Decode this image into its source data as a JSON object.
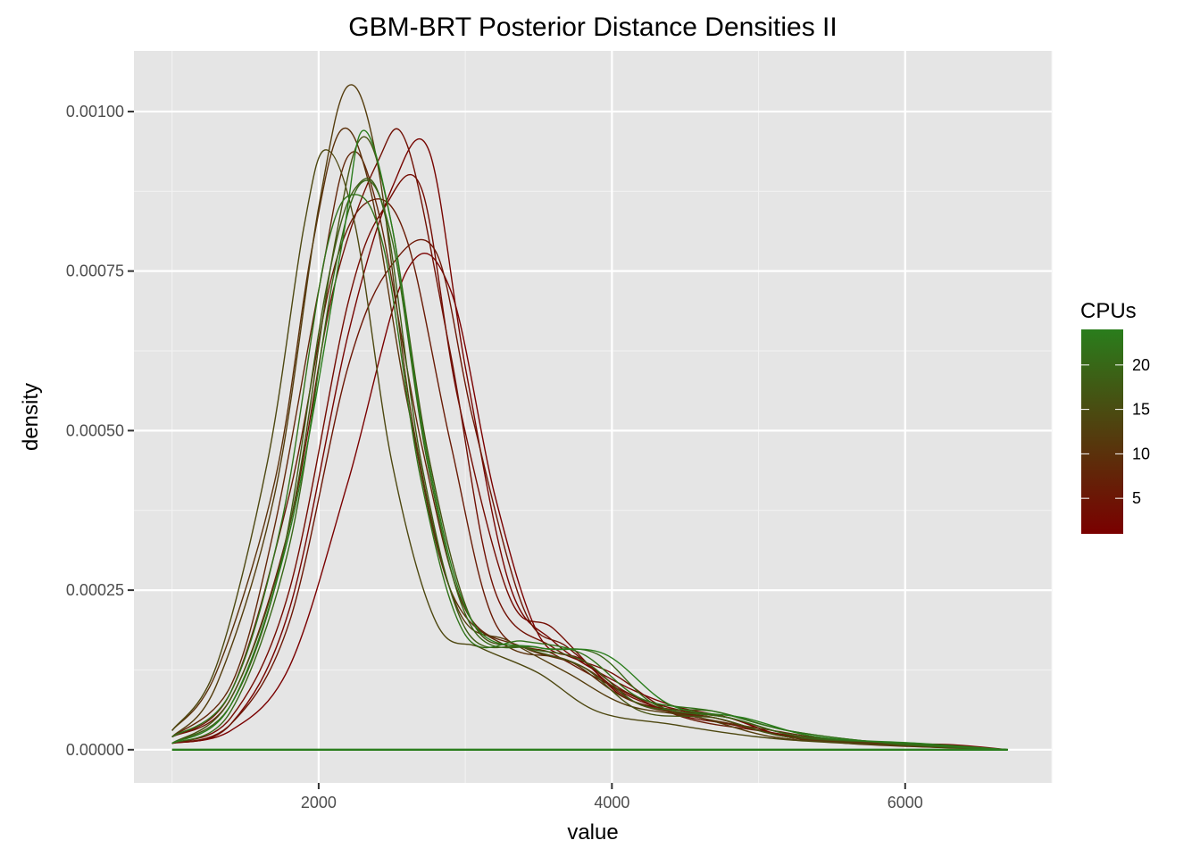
{
  "chart_data": {
    "type": "line",
    "title": "GBM-BRT Posterior Distance Densities II",
    "xlabel": "value",
    "ylabel": "density",
    "xlim": [
      740,
      7000
    ],
    "ylim": [
      -5.2e-05,
      0.001095
    ],
    "x_ticks": [
      2000,
      4000,
      6000
    ],
    "x_tick_labels": [
      "2000",
      "4000",
      "6000"
    ],
    "y_ticks": [
      0,
      0.00025,
      0.0005,
      0.00075,
      0.001
    ],
    "y_tick_labels": [
      "0.00000",
      "0.00025",
      "0.00050",
      "0.00075",
      "0.00100"
    ],
    "grid": true,
    "panel_background": "#e5e5e5",
    "grid_color": "#ffffff",
    "legend": {
      "title": "CPUs",
      "position": "right",
      "type": "colorbar",
      "range": [
        1,
        24
      ],
      "ticks": [
        5,
        10,
        15,
        20
      ],
      "tick_labels": [
        "5",
        "10",
        "15",
        "20"
      ],
      "low_color": "#7a0000",
      "high_color": "#2a7d1c"
    },
    "series": [
      {
        "cpus": 1,
        "values": [
          [
            1000,
            1e-05
          ],
          [
            1400,
            3e-05
          ],
          [
            1800,
            0.00013
          ],
          [
            2200,
            0.00042
          ],
          [
            2600,
            0.00075
          ],
          [
            2900,
            0.00072
          ],
          [
            3200,
            0.0004
          ],
          [
            3500,
            0.00018
          ],
          [
            3800,
            0.00014
          ],
          [
            4100,
            8e-05
          ],
          [
            4500,
            6e-05
          ],
          [
            4800,
            5e-05
          ],
          [
            5200,
            2e-05
          ],
          [
            5700,
            1e-05
          ],
          [
            6300,
            5e-06
          ],
          [
            6700,
            0
          ]
        ]
      },
      {
        "cpus": 2,
        "values": [
          [
            1000,
            1e-05
          ],
          [
            1400,
            4e-05
          ],
          [
            1800,
            0.00022
          ],
          [
            2200,
            0.00065
          ],
          [
            2500,
            0.00088
          ],
          [
            2750,
            0.00094
          ],
          [
            3000,
            0.0006
          ],
          [
            3300,
            0.00026
          ],
          [
            3600,
            0.00017
          ],
          [
            4000,
            0.00011
          ],
          [
            4400,
            7e-05
          ],
          [
            4800,
            5e-05
          ],
          [
            5200,
            2e-05
          ],
          [
            5800,
            1e-05
          ],
          [
            6300,
            8e-06
          ],
          [
            6700,
            0
          ]
        ]
      },
      {
        "cpus": 3,
        "values": [
          [
            1000,
            1e-05
          ],
          [
            1400,
            5e-05
          ],
          [
            1800,
            0.00025
          ],
          [
            2200,
            0.0007
          ],
          [
            2450,
            0.00085
          ],
          [
            2700,
            0.00088
          ],
          [
            2950,
            0.00055
          ],
          [
            3300,
            0.00024
          ],
          [
            3600,
            0.00019
          ],
          [
            4000,
            0.0001
          ],
          [
            4400,
            6e-05
          ],
          [
            4700,
            5e-05
          ],
          [
            5200,
            2e-05
          ],
          [
            5800,
            1e-05
          ],
          [
            6700,
            0
          ]
        ]
      },
      {
        "cpus": 4,
        "values": [
          [
            1000,
            2e-05
          ],
          [
            1400,
            8e-05
          ],
          [
            1800,
            0.00035
          ],
          [
            2100,
            0.00072
          ],
          [
            2400,
            0.00092
          ],
          [
            2600,
            0.00095
          ],
          [
            2900,
            0.00062
          ],
          [
            3200,
            0.00025
          ],
          [
            3600,
            0.00016
          ],
          [
            4000,
            0.00012
          ],
          [
            4400,
            6e-05
          ],
          [
            4800,
            4e-05
          ],
          [
            5300,
            2e-05
          ],
          [
            6000,
            1e-05
          ],
          [
            6700,
            0
          ]
        ]
      },
      {
        "cpus": 5,
        "values": [
          [
            1000,
            1e-05
          ],
          [
            1400,
            4e-05
          ],
          [
            1800,
            0.0002
          ],
          [
            2200,
            0.0006
          ],
          [
            2500,
            0.00076
          ],
          [
            2800,
            0.00078
          ],
          [
            3050,
            0.00052
          ],
          [
            3400,
            0.00022
          ],
          [
            3700,
            0.00016
          ],
          [
            4100,
            9e-05
          ],
          [
            4500,
            6e-05
          ],
          [
            4800,
            5e-05
          ],
          [
            5300,
            2e-05
          ],
          [
            6000,
            1e-05
          ],
          [
            6700,
            0
          ]
        ]
      },
      {
        "cpus": 6,
        "values": [
          [
            1000,
            2e-05
          ],
          [
            1400,
            9e-05
          ],
          [
            1800,
            0.0004
          ],
          [
            2100,
            0.00075
          ],
          [
            2350,
            0.00086
          ],
          [
            2600,
            0.0008
          ],
          [
            2900,
            0.00048
          ],
          [
            3200,
            0.0002
          ],
          [
            3600,
            0.00015
          ],
          [
            4000,
            0.0001
          ],
          [
            4500,
            5e-05
          ],
          [
            5000,
            3e-05
          ],
          [
            5600,
            1e-05
          ],
          [
            6700,
            0
          ]
        ]
      },
      {
        "cpus": 8,
        "values": [
          [
            1000,
            2e-05
          ],
          [
            1400,
            0.0001
          ],
          [
            1700,
            0.00035
          ],
          [
            2000,
            0.00072
          ],
          [
            2200,
            0.00093
          ],
          [
            2400,
            0.00085
          ],
          [
            2700,
            0.00048
          ],
          [
            3000,
            0.00022
          ],
          [
            3400,
            0.00016
          ],
          [
            3800,
            0.00013
          ],
          [
            4200,
            7e-05
          ],
          [
            4700,
            5e-05
          ],
          [
            5200,
            2e-05
          ],
          [
            5800,
            1e-05
          ],
          [
            6700,
            0
          ]
        ]
      },
      {
        "cpus": 10,
        "values": [
          [
            1000,
            3e-05
          ],
          [
            1300,
            0.00012
          ],
          [
            1700,
            0.00042
          ],
          [
            1950,
            0.00078
          ],
          [
            2150,
            0.00097
          ],
          [
            2350,
            0.00088
          ],
          [
            2600,
            0.00055
          ],
          [
            2900,
            0.00025
          ],
          [
            3300,
            0.00016
          ],
          [
            3700,
            0.00014
          ],
          [
            4100,
            8e-05
          ],
          [
            4600,
            5e-05
          ],
          [
            5100,
            3e-05
          ],
          [
            5700,
            1e-05
          ],
          [
            6700,
            0
          ]
        ]
      },
      {
        "cpus": 12,
        "values": [
          [
            1000,
            2e-05
          ],
          [
            1300,
            0.0001
          ],
          [
            1700,
            0.0004
          ],
          [
            2000,
            0.00085
          ],
          [
            2200,
            0.00104
          ],
          [
            2400,
            0.00092
          ],
          [
            2650,
            0.0005
          ],
          [
            2950,
            0.00022
          ],
          [
            3300,
            0.00017
          ],
          [
            3700,
            0.00012
          ],
          [
            4100,
            7e-05
          ],
          [
            4600,
            5e-05
          ],
          [
            5100,
            2e-05
          ],
          [
            5700,
            1e-05
          ],
          [
            6700,
            0
          ]
        ]
      },
      {
        "cpus": 14,
        "values": [
          [
            1000,
            3e-05
          ],
          [
            1300,
            0.00013
          ],
          [
            1650,
            0.00045
          ],
          [
            1900,
            0.00082
          ],
          [
            2050,
            0.00094
          ],
          [
            2250,
            0.00082
          ],
          [
            2500,
            0.00045
          ],
          [
            2800,
            0.0002
          ],
          [
            3100,
            0.00016
          ],
          [
            3500,
            0.00012
          ],
          [
            3900,
            6e-05
          ],
          [
            4400,
            4e-05
          ],
          [
            5000,
            2e-05
          ],
          [
            5600,
            1e-05
          ],
          [
            6700,
            0
          ]
        ]
      },
      {
        "cpus": 16,
        "values": [
          [
            1000,
            1e-05
          ],
          [
            1400,
            8e-05
          ],
          [
            1800,
            0.00035
          ],
          [
            2100,
            0.00078
          ],
          [
            2300,
            0.00096
          ],
          [
            2500,
            0.00082
          ],
          [
            2750,
            0.00046
          ],
          [
            3050,
            0.0002
          ],
          [
            3400,
            0.00016
          ],
          [
            3800,
            0.00013
          ],
          [
            4200,
            6e-05
          ],
          [
            4700,
            5e-05
          ],
          [
            5200,
            2e-05
          ],
          [
            6000,
            1e-05
          ],
          [
            6700,
            0
          ]
        ]
      },
      {
        "cpus": 18,
        "values": [
          [
            1000,
            1e-05
          ],
          [
            1400,
            7e-05
          ],
          [
            1750,
            0.0003
          ],
          [
            2050,
            0.00072
          ],
          [
            2250,
            0.00088
          ],
          [
            2450,
            0.00084
          ],
          [
            2700,
            0.00045
          ],
          [
            3000,
            0.00019
          ],
          [
            3400,
            0.00016
          ],
          [
            3800,
            0.00014
          ],
          [
            4200,
            7e-05
          ],
          [
            4700,
            6e-05
          ],
          [
            5200,
            3e-05
          ],
          [
            5900,
            1e-05
          ],
          [
            6700,
            0
          ]
        ]
      },
      {
        "cpus": 20,
        "values": [
          [
            1000,
            1e-05
          ],
          [
            1400,
            6e-05
          ],
          [
            1800,
            0.00032
          ],
          [
            2100,
            0.00074
          ],
          [
            2300,
            0.00089
          ],
          [
            2500,
            0.0008
          ],
          [
            2750,
            0.00044
          ],
          [
            3050,
            0.00019
          ],
          [
            3500,
            0.00016
          ],
          [
            3900,
            0.00015
          ],
          [
            4300,
            7e-05
          ],
          [
            4800,
            5e-05
          ],
          [
            5300,
            2e-05
          ],
          [
            6000,
            1e-05
          ],
          [
            6700,
            0
          ]
        ]
      },
      {
        "cpus": 22,
        "values": [
          [
            1000,
            2e-05
          ],
          [
            1400,
            9e-05
          ],
          [
            1750,
            0.00036
          ],
          [
            2050,
            0.00078
          ],
          [
            2250,
            0.00087
          ],
          [
            2450,
            0.00078
          ],
          [
            2700,
            0.00042
          ],
          [
            3000,
            0.00018
          ],
          [
            3400,
            0.00017
          ],
          [
            3800,
            0.00015
          ],
          [
            4200,
            8e-05
          ],
          [
            4700,
            6e-05
          ],
          [
            5200,
            3e-05
          ],
          [
            5900,
            1e-05
          ],
          [
            6700,
            0
          ]
        ]
      },
      {
        "cpus": 24,
        "values": [
          [
            1000,
            1e-05
          ],
          [
            1400,
            7e-05
          ],
          [
            1800,
            0.00034
          ],
          [
            2150,
            0.00078
          ],
          [
            2300,
            0.00097
          ],
          [
            2500,
            0.00082
          ],
          [
            2750,
            0.00045
          ],
          [
            3050,
            0.0002
          ],
          [
            3500,
            0.00016
          ],
          [
            3950,
            0.00015
          ],
          [
            4400,
            7e-05
          ],
          [
            4900,
            5e-05
          ],
          [
            5400,
            2e-05
          ],
          [
            6100,
            1e-05
          ],
          [
            6700,
            0
          ]
        ]
      }
    ]
  }
}
